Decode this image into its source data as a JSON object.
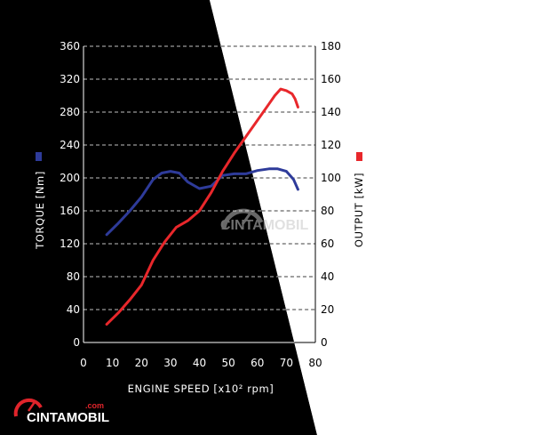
{
  "chart_data": {
    "type": "line",
    "xlabel": "ENGINE SPEED [x10² rpm]",
    "ylabel_left": "TORQUE [Nm]",
    "ylabel_right": "OUTPUT [kW]",
    "x_ticks": [
      "0",
      "10",
      "20",
      "30",
      "40",
      "50",
      "60",
      "70",
      "80"
    ],
    "y_left_ticks": [
      "0",
      "40",
      "80",
      "120",
      "160",
      "200",
      "240",
      "280",
      "320",
      "360"
    ],
    "y_right_ticks": [
      "0",
      "20",
      "40",
      "60",
      "80",
      "100",
      "120",
      "140",
      "160",
      "180"
    ],
    "xlim": [
      0,
      80
    ],
    "ylim_left": [
      0,
      360
    ],
    "ylim_right": [
      0,
      180
    ],
    "grid": "horizontal-dashed",
    "series": [
      {
        "axis": "left",
        "color": "#2e3b9a",
        "x": [
          8,
          12,
          16,
          20,
          24,
          27,
          30,
          33,
          36,
          40,
          44,
          48,
          52,
          56,
          60,
          64,
          67,
          70,
          72.5,
          74
        ],
        "y": [
          131,
          145,
          160,
          177,
          198,
          206,
          208,
          206,
          195,
          187,
          190,
          203,
          205,
          205,
          209,
          211,
          211,
          208,
          198,
          186
        ]
      },
      {
        "axis": "right",
        "color": "#e8272b",
        "x": [
          8,
          12,
          16,
          20,
          24,
          28,
          32,
          36,
          40,
          44,
          48,
          52,
          56,
          60,
          64,
          66,
          68,
          70,
          72,
          73,
          74
        ],
        "y": [
          11,
          18,
          26,
          35,
          50,
          61,
          70,
          74,
          80,
          91,
          104,
          115,
          125,
          135,
          145,
          150,
          154,
          153,
          151,
          148,
          143
        ]
      }
    ]
  },
  "colors": {
    "dark_background": "#000000",
    "light_background": "#ffffff",
    "torque_marker": "#2e3b9a",
    "output_marker": "#e8272b"
  },
  "watermark": {
    "center": "CINTAMOBIL",
    "corner": "CINTAMOBIL",
    "corner_suffix": ".com",
    "icon": "speedometer-icon"
  }
}
